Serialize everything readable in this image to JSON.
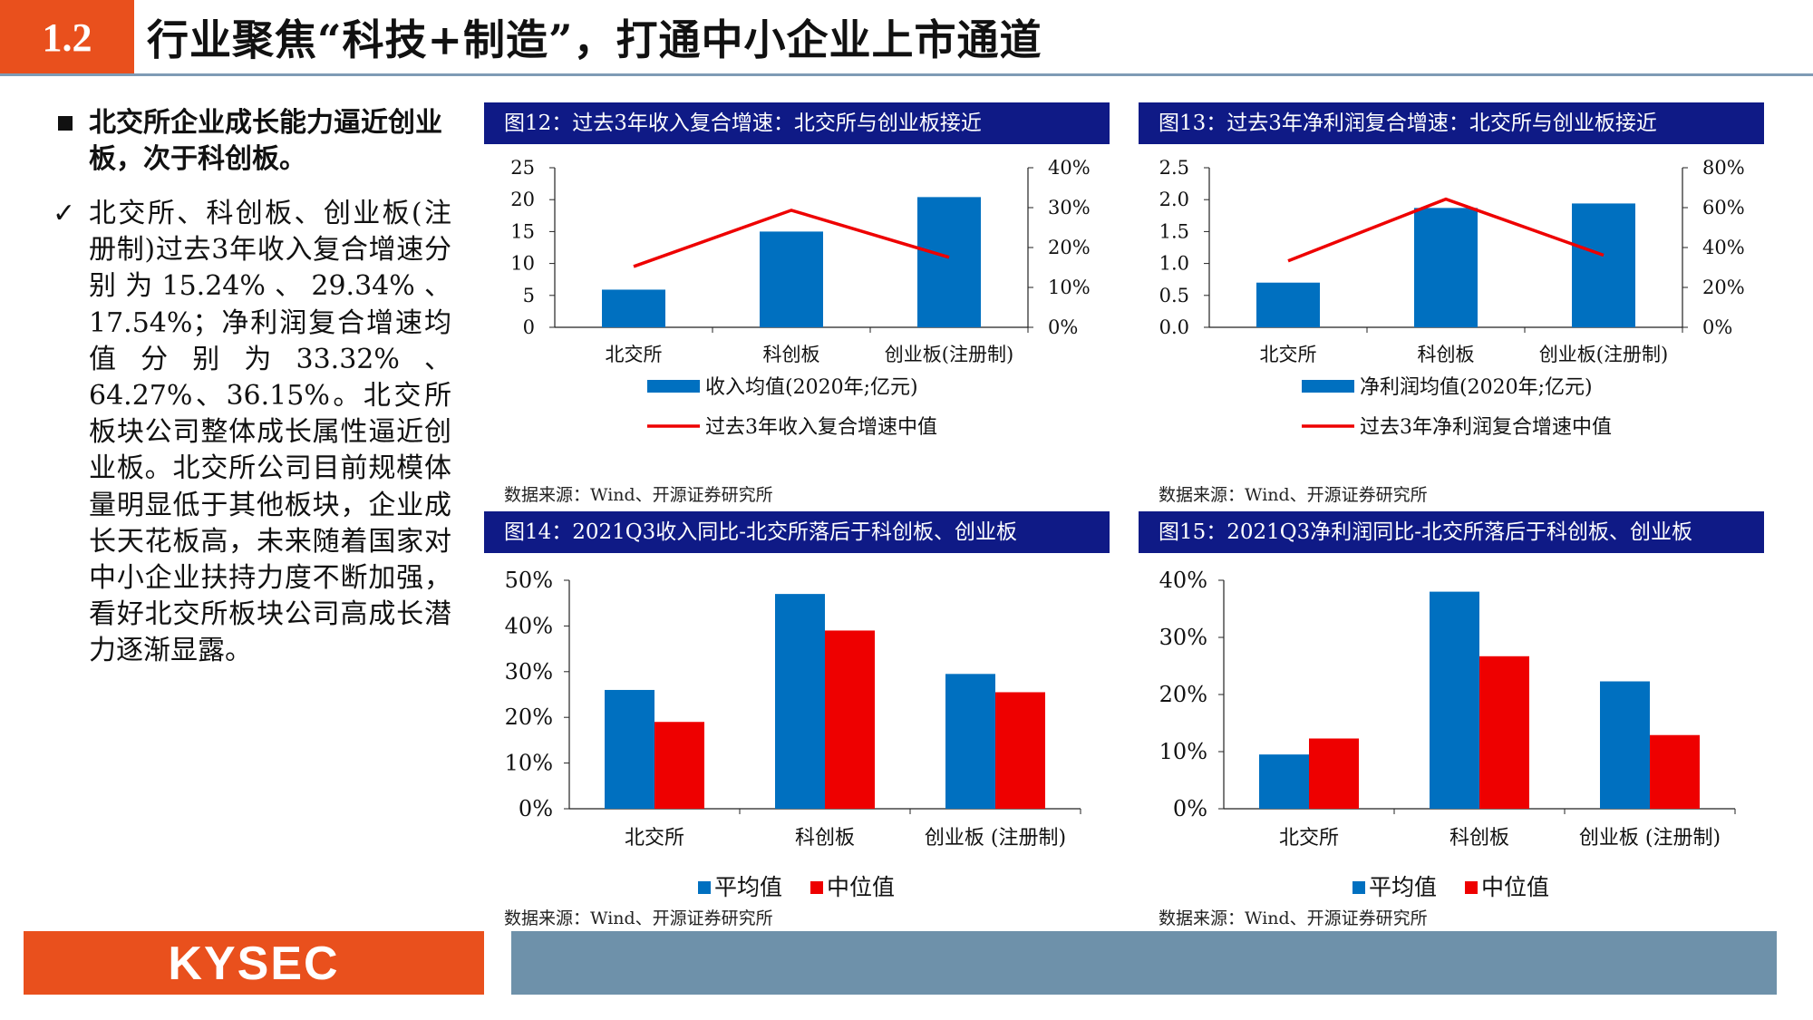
{
  "header": {
    "section": "1.2",
    "title": "行业聚焦“科技+制造”，打通中小企业上市通道"
  },
  "left": {
    "headline": "北交所企业成长能力逼近创业板，次于科创板。",
    "body": "北交所、科创板、创业板(注册制)过去3年收入复合增速分别为15.24%、29.34%、17.54%；净利润复合增速均值分别为33.32%、64.27%、36.15%。北交所板块公司整体成长属性逼近创业板。北交所公司目前规模体量明显低于其他板块，企业成长天花板高，未来随着国家对中小企业扶持力度不断加强，看好北交所板块公司高成长潜力逐渐显露。",
    "check_mark": "✓"
  },
  "colors": {
    "blue": "#0070c0",
    "red": "#ee0000",
    "panel_header": "#0f1a86",
    "orange": "#e9501d",
    "steel": "#6e91aa"
  },
  "footer": {
    "logo": "KYSEC"
  },
  "chart_data": [
    {
      "type": "bar+line",
      "title": "图12：过去3年收入复合增速：北交所与创业板接近",
      "categories": [
        "北交所",
        "科创板",
        "创业板(注册制)"
      ],
      "series": [
        {
          "name": "收入均值(2020年;亿元)",
          "kind": "bar",
          "axis": "left",
          "values": [
            5.9,
            15.0,
            20.4
          ]
        },
        {
          "name": "过去3年收入复合增速中值",
          "kind": "line",
          "axis": "right",
          "values": [
            15.24,
            29.34,
            17.54
          ]
        }
      ],
      "y_left": {
        "min": 0,
        "max": 25,
        "ticks": [
          "0",
          "5",
          "10",
          "15",
          "20",
          "25"
        ]
      },
      "y_right": {
        "min": 0,
        "max": 40,
        "ticks": [
          "0%",
          "10%",
          "20%",
          "30%",
          "40%"
        ]
      },
      "source": "数据来源：Wind、开源证券研究所"
    },
    {
      "type": "bar+line",
      "title": "图13：过去3年净利润复合增速：北交所与创业板接近",
      "categories": [
        "北交所",
        "科创板",
        "创业板(注册制)"
      ],
      "series": [
        {
          "name": "净利润均值(2020年;亿元)",
          "kind": "bar",
          "axis": "left",
          "values": [
            0.7,
            1.87,
            1.94
          ]
        },
        {
          "name": "过去3年净利润复合增速中值",
          "kind": "line",
          "axis": "right",
          "values": [
            33.32,
            64.27,
            36.15
          ]
        }
      ],
      "y_left": {
        "min": 0,
        "max": 2.5,
        "ticks": [
          "0.0",
          "0.5",
          "1.0",
          "1.5",
          "2.0",
          "2.5"
        ]
      },
      "y_right": {
        "min": 0,
        "max": 80,
        "ticks": [
          "0%",
          "20%",
          "40%",
          "60%",
          "80%"
        ]
      },
      "source": "数据来源：Wind、开源证券研究所"
    },
    {
      "type": "bar",
      "title": "图14：2021Q3收入同比-北交所落后于科创板、创业板",
      "categories": [
        "北交所",
        "科创板",
        "创业板 (注册制)"
      ],
      "series": [
        {
          "name": "平均值",
          "values": [
            26,
            47,
            29.5
          ]
        },
        {
          "name": "中位值",
          "values": [
            19,
            39,
            25.5
          ]
        }
      ],
      "y_left": {
        "min": 0,
        "max": 50,
        "ticks": [
          "0%",
          "10%",
          "20%",
          "30%",
          "40%",
          "50%"
        ]
      },
      "source": "数据来源：Wind、开源证券研究所"
    },
    {
      "type": "bar",
      "title": "图15：2021Q3净利润同比-北交所落后于科创板、创业板",
      "categories": [
        "北交所",
        "科创板",
        "创业板 (注册制)"
      ],
      "series": [
        {
          "name": "平均值",
          "values": [
            9.5,
            38,
            22.3
          ]
        },
        {
          "name": "中位值",
          "values": [
            12.3,
            26.7,
            12.9
          ]
        }
      ],
      "y_left": {
        "min": 0,
        "max": 40,
        "ticks": [
          "0%",
          "10%",
          "20%",
          "30%",
          "40%"
        ]
      },
      "source": "数据来源：Wind、开源证券研究所"
    }
  ]
}
